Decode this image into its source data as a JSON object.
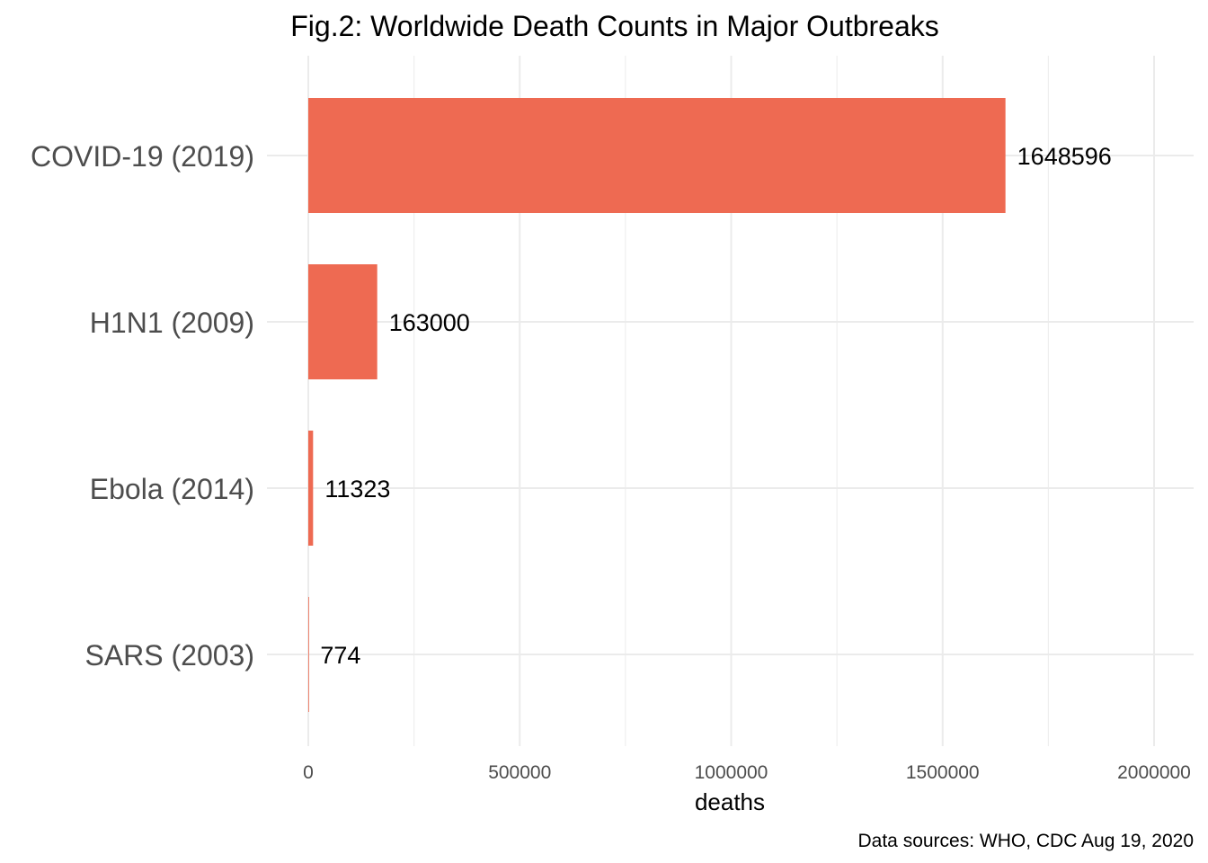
{
  "chart_data": {
    "type": "bar",
    "orientation": "horizontal",
    "title": "Fig.2: Worldwide Death Counts in Major Outbreaks",
    "xlabel": "deaths",
    "ylabel": "",
    "caption": "Data sources: WHO, CDC Aug 19, 2020",
    "categories": [
      "COVID-19 (2019)",
      "H1N1 (2009)",
      "Ebola (2014)",
      "SARS (2003)"
    ],
    "values": [
      1648596,
      163000,
      11323,
      774
    ],
    "data_labels": [
      "1648596",
      "163000",
      "11323",
      "774"
    ],
    "xlim": [
      0,
      2000000
    ],
    "xticks": [
      0,
      500000,
      1000000,
      1500000,
      2000000
    ],
    "xtick_labels": [
      "0",
      "500000",
      "1000000",
      "1500000",
      "2000000"
    ],
    "grid": true,
    "legend": "none",
    "bar_color": "#ee6a52"
  }
}
